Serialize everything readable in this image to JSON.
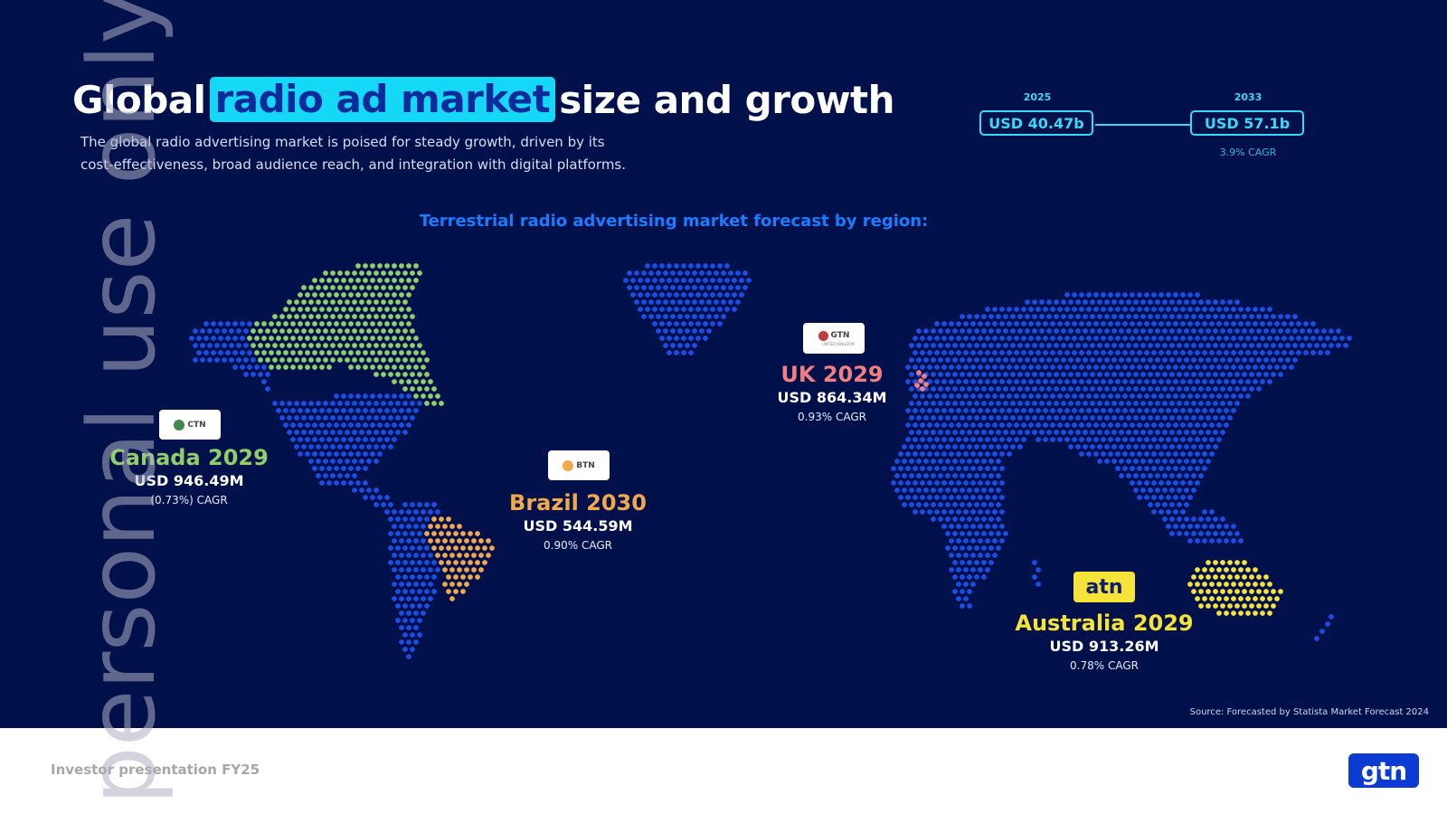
{
  "header": {
    "title_before": "Global",
    "title_highlight": "radio ad market",
    "title_after": "size and growth",
    "subtitle_line1": "The global radio advertising market is poised for steady growth, driven by its",
    "subtitle_line2": "cost-effectiveness, broad audience reach, and integration with digital platforms."
  },
  "growth": {
    "year_start": "2025",
    "value_start": "USD 40.47b",
    "year_end": "2033",
    "value_end": "USD 57.1b",
    "cagr": "3.9% CAGR"
  },
  "map_heading": "Terrestrial radio advertising market forecast by region:",
  "regions": {
    "canada": {
      "logo": "CTN",
      "name": "Canada 2029",
      "value": "USD 946.49M",
      "cagr": "(0.73%) CAGR",
      "color": "#8fcf6a"
    },
    "brazil": {
      "logo": "BTN",
      "name": "Brazil 2030",
      "value": "USD 544.59M",
      "cagr": "0.90% CAGR",
      "color": "#f2a94e"
    },
    "uk": {
      "logo": "GTN",
      "logo_sub": "UNITED KINGDOM",
      "name": "UK 2029",
      "value": "USD 864.34M",
      "cagr": "0.93% CAGR",
      "color": "#f27f7f"
    },
    "australia": {
      "logo": "atn",
      "name": "Australia 2029",
      "value": "USD 913.26M",
      "cagr": "0.78% CAGR",
      "color": "#f6e33a"
    }
  },
  "colors": {
    "background": "#00104a",
    "accent_cyan": "#38d9f4",
    "map_blue": "#1a4ee6",
    "heading_blue": "#1a7dff"
  },
  "source": "Source: Forecasted by Statista Market Forecast 2024",
  "footer": {
    "text": "Investor presentation FY25",
    "logo": "gtn"
  },
  "watermark": "personal use only"
}
